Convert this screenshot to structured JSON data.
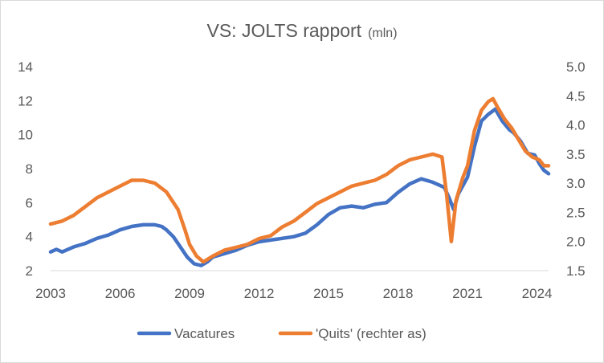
{
  "chart_data": {
    "type": "line",
    "title": "VS: JOLTS rapport",
    "title_unit": "(mln)",
    "x_ticks": [
      "2003",
      "2006",
      "2009",
      "2012",
      "2015",
      "2018",
      "2021",
      "2024"
    ],
    "xlim": [
      2003,
      2024.5
    ],
    "y_left": {
      "ticks": [
        "2",
        "4",
        "6",
        "8",
        "10",
        "12",
        "14"
      ],
      "ylim": [
        2,
        14
      ]
    },
    "y_right": {
      "ticks": [
        "1.5",
        "2.0",
        "2.5",
        "3.0",
        "3.5",
        "4.0",
        "4.5",
        "5.0"
      ],
      "ylim": [
        1.5,
        5.0
      ]
    },
    "grid": false,
    "legend_position": "bottom",
    "series": [
      {
        "name": "Vacatures",
        "axis": "left",
        "color": "#4472c4",
        "points": [
          [
            2003.0,
            3.1
          ],
          [
            2003.25,
            3.25
          ],
          [
            2003.5,
            3.1
          ],
          [
            2004.0,
            3.4
          ],
          [
            2004.5,
            3.6
          ],
          [
            2005.0,
            3.9
          ],
          [
            2005.5,
            4.1
          ],
          [
            2006.0,
            4.4
          ],
          [
            2006.5,
            4.6
          ],
          [
            2007.0,
            4.7
          ],
          [
            2007.5,
            4.7
          ],
          [
            2007.8,
            4.6
          ],
          [
            2008.0,
            4.4
          ],
          [
            2008.3,
            4.0
          ],
          [
            2008.6,
            3.4
          ],
          [
            2008.9,
            2.8
          ],
          [
            2009.2,
            2.4
          ],
          [
            2009.5,
            2.3
          ],
          [
            2009.8,
            2.55
          ],
          [
            2010.0,
            2.8
          ],
          [
            2010.5,
            3.0
          ],
          [
            2011.0,
            3.2
          ],
          [
            2011.5,
            3.5
          ],
          [
            2012.0,
            3.7
          ],
          [
            2012.5,
            3.8
          ],
          [
            2013.0,
            3.9
          ],
          [
            2013.5,
            4.0
          ],
          [
            2014.0,
            4.2
          ],
          [
            2014.5,
            4.7
          ],
          [
            2015.0,
            5.3
          ],
          [
            2015.5,
            5.7
          ],
          [
            2016.0,
            5.8
          ],
          [
            2016.5,
            5.7
          ],
          [
            2017.0,
            5.9
          ],
          [
            2017.5,
            6.0
          ],
          [
            2018.0,
            6.6
          ],
          [
            2018.5,
            7.1
          ],
          [
            2019.0,
            7.4
          ],
          [
            2019.5,
            7.2
          ],
          [
            2020.0,
            6.9
          ],
          [
            2020.2,
            6.3
          ],
          [
            2020.4,
            5.6
          ],
          [
            2020.6,
            6.5
          ],
          [
            2021.0,
            7.5
          ],
          [
            2021.3,
            9.3
          ],
          [
            2021.6,
            10.8
          ],
          [
            2021.9,
            11.2
          ],
          [
            2022.2,
            11.5
          ],
          [
            2022.5,
            10.8
          ],
          [
            2022.8,
            10.3
          ],
          [
            2023.0,
            10.1
          ],
          [
            2023.3,
            9.6
          ],
          [
            2023.6,
            8.9
          ],
          [
            2023.9,
            8.8
          ],
          [
            2024.1,
            8.3
          ],
          [
            2024.3,
            7.9
          ],
          [
            2024.5,
            7.7
          ]
        ]
      },
      {
        "name": "'Quits' (rechter as)",
        "axis": "right",
        "color": "#ed7d31",
        "points": [
          [
            2003.0,
            2.3
          ],
          [
            2003.5,
            2.35
          ],
          [
            2004.0,
            2.45
          ],
          [
            2004.5,
            2.6
          ],
          [
            2005.0,
            2.75
          ],
          [
            2005.5,
            2.85
          ],
          [
            2006.0,
            2.95
          ],
          [
            2006.5,
            3.05
          ],
          [
            2007.0,
            3.05
          ],
          [
            2007.5,
            3.0
          ],
          [
            2008.0,
            2.85
          ],
          [
            2008.5,
            2.55
          ],
          [
            2008.8,
            2.2
          ],
          [
            2009.0,
            1.95
          ],
          [
            2009.3,
            1.75
          ],
          [
            2009.6,
            1.65
          ],
          [
            2010.0,
            1.75
          ],
          [
            2010.5,
            1.85
          ],
          [
            2011.0,
            1.9
          ],
          [
            2011.5,
            1.95
          ],
          [
            2012.0,
            2.05
          ],
          [
            2012.5,
            2.1
          ],
          [
            2013.0,
            2.25
          ],
          [
            2013.5,
            2.35
          ],
          [
            2014.0,
            2.5
          ],
          [
            2014.5,
            2.65
          ],
          [
            2015.0,
            2.75
          ],
          [
            2015.5,
            2.85
          ],
          [
            2016.0,
            2.95
          ],
          [
            2016.5,
            3.0
          ],
          [
            2017.0,
            3.05
          ],
          [
            2017.5,
            3.15
          ],
          [
            2018.0,
            3.3
          ],
          [
            2018.5,
            3.4
          ],
          [
            2019.0,
            3.45
          ],
          [
            2019.5,
            3.5
          ],
          [
            2019.9,
            3.45
          ],
          [
            2020.1,
            2.8
          ],
          [
            2020.3,
            2.0
          ],
          [
            2020.5,
            2.7
          ],
          [
            2020.8,
            3.1
          ],
          [
            2021.0,
            3.3
          ],
          [
            2021.3,
            3.9
          ],
          [
            2021.6,
            4.25
          ],
          [
            2021.9,
            4.4
          ],
          [
            2022.1,
            4.45
          ],
          [
            2022.3,
            4.3
          ],
          [
            2022.6,
            4.1
          ],
          [
            2022.9,
            3.95
          ],
          [
            2023.2,
            3.75
          ],
          [
            2023.5,
            3.55
          ],
          [
            2023.8,
            3.45
          ],
          [
            2024.1,
            3.4
          ],
          [
            2024.3,
            3.3
          ],
          [
            2024.5,
            3.3
          ]
        ]
      }
    ]
  }
}
